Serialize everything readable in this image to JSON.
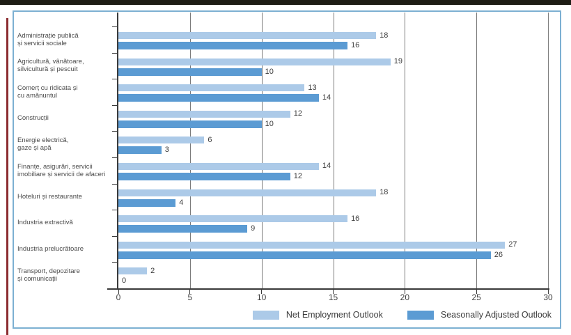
{
  "colors": {
    "frame_border": "#7cb0d2",
    "gridline": "#7a7a7a",
    "axis": "#3a3a3a",
    "category_label_text": "#4a4a4a",
    "value_label_text": "#3c3c3c",
    "page_edge_top": "#1e1d15",
    "page_edge_left": "#8b2c30"
  },
  "chart_data": {
    "type": "bar",
    "orientation": "horizontal",
    "title": "",
    "xlabel": "",
    "ylabel": "",
    "xlim": [
      0,
      30
    ],
    "x_ticks": [
      0,
      5,
      10,
      15,
      20,
      25,
      30
    ],
    "grid": "vertical gridlines at x ticks",
    "legend_position": "bottom-right inside frame",
    "value_labels": "at end of each bar",
    "categories": [
      {
        "lines": [
          "Administrație publică",
          "și servicii sociale"
        ]
      },
      {
        "lines": [
          "Agricultură, vânătoare,",
          "silvicultură și pescuit"
        ]
      },
      {
        "lines": [
          "Comerț cu ridicata și",
          "cu amănuntul"
        ]
      },
      {
        "lines": [
          "Construcții"
        ]
      },
      {
        "lines": [
          "Energie electrică,",
          "gaze și apă"
        ]
      },
      {
        "lines": [
          "Finanțe, asigurări, servicii",
          "imobiliare și servicii de afaceri"
        ]
      },
      {
        "lines": [
          "Hoteluri și restaurante"
        ]
      },
      {
        "lines": [
          "Industria extractivă"
        ]
      },
      {
        "lines": [
          "Industria prelucrătoare"
        ]
      },
      {
        "lines": [
          "Transport, depozitare",
          "și comunicații"
        ]
      }
    ],
    "series": [
      {
        "name": "Net Employment Outlook",
        "color": "#accae8",
        "values": [
          18,
          19,
          13,
          12,
          6,
          14,
          18,
          16,
          27,
          2
        ]
      },
      {
        "name": "Seasonally Adjusted Outlook",
        "color": "#5b9bd3",
        "values": [
          16,
          10,
          14,
          10,
          3,
          12,
          4,
          9,
          26,
          0
        ]
      }
    ]
  }
}
